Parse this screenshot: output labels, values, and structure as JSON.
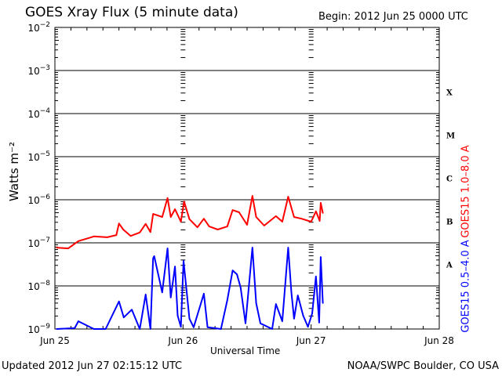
{
  "header": {
    "title": "GOES Xray Flux (5 minute data)",
    "begin": "Begin:  2012 Jun 25 0000 UTC"
  },
  "footer": {
    "updated": "Updated 2012 Jun 27 02:15:12 UTC",
    "credit": "NOAA/SWPC Boulder, CO USA"
  },
  "chart_data": {
    "type": "line",
    "title": "GOES Xray Flux (5 minute data)",
    "xlabel": "Universal Time",
    "ylabel": "Watts m⁻²",
    "x_unit": "hours since 2012 Jun 25 0000 UTC",
    "xlim": [
      0,
      72
    ],
    "ylim_log10": [
      -9,
      -2
    ],
    "yscale": "log",
    "x_ticks": [
      {
        "h": 0,
        "label": "Jun 25"
      },
      {
        "h": 24,
        "label": "Jun 26"
      },
      {
        "h": 48,
        "label": "Jun 27"
      },
      {
        "h": 72,
        "label": "Jun 28"
      }
    ],
    "y_ticks": [
      {
        "exp": -2,
        "base": "10",
        "sup": "−2"
      },
      {
        "exp": -3,
        "base": "10",
        "sup": "−3"
      },
      {
        "exp": -4,
        "base": "10",
        "sup": "−4"
      },
      {
        "exp": -5,
        "base": "10",
        "sup": "−5"
      },
      {
        "exp": -6,
        "base": "10",
        "sup": "−6"
      },
      {
        "exp": -7,
        "base": "10",
        "sup": "−7"
      },
      {
        "exp": -8,
        "base": "10",
        "sup": "−8"
      },
      {
        "exp": -9,
        "base": "10",
        "sup": "−9"
      }
    ],
    "flare_classes": [
      {
        "label": "X",
        "exp": -3.5
      },
      {
        "label": "M",
        "exp": -4.5
      },
      {
        "label": "C",
        "exp": -5.5
      },
      {
        "label": "B",
        "exp": -6.5
      },
      {
        "label": "A",
        "exp": -7.5
      }
    ],
    "grid": true,
    "series": [
      {
        "name": "GOES15 1.0–8.0 A",
        "color": "#ff0000",
        "log10_flux": [
          [
            0.3,
            -7.11
          ],
          [
            2.5,
            -7.13
          ],
          [
            4.4,
            -6.96
          ],
          [
            6.3,
            -6.89
          ],
          [
            7.3,
            -6.85
          ],
          [
            9.8,
            -6.87
          ],
          [
            11.5,
            -6.82
          ],
          [
            12.0,
            -6.55
          ],
          [
            12.8,
            -6.69
          ],
          [
            14.2,
            -6.84
          ],
          [
            15.9,
            -6.76
          ],
          [
            17.0,
            -6.56
          ],
          [
            17.9,
            -6.75
          ],
          [
            18.4,
            -6.33
          ],
          [
            20.1,
            -6.4
          ],
          [
            21.1,
            -5.96
          ],
          [
            21.7,
            -6.4
          ],
          [
            22.5,
            -6.22
          ],
          [
            23.6,
            -6.51
          ],
          [
            24.2,
            -6.04
          ],
          [
            25.2,
            -6.45
          ],
          [
            26.7,
            -6.64
          ],
          [
            27.9,
            -6.44
          ],
          [
            28.9,
            -6.62
          ],
          [
            30.5,
            -6.69
          ],
          [
            32.3,
            -6.62
          ],
          [
            33.3,
            -6.24
          ],
          [
            34.5,
            -6.29
          ],
          [
            36.0,
            -6.58
          ],
          [
            37.0,
            -5.91
          ],
          [
            37.7,
            -6.4
          ],
          [
            39.2,
            -6.6
          ],
          [
            41.4,
            -6.38
          ],
          [
            42.6,
            -6.51
          ],
          [
            43.7,
            -5.93
          ],
          [
            44.8,
            -6.4
          ],
          [
            46.2,
            -6.44
          ],
          [
            48.0,
            -6.51
          ],
          [
            48.9,
            -6.27
          ],
          [
            49.6,
            -6.49
          ],
          [
            49.8,
            -6.07
          ],
          [
            50.2,
            -6.31
          ]
        ]
      },
      {
        "name": "GOES15 0.5–4.0 A",
        "color": "#0000ff",
        "log10_flux": [
          [
            0.3,
            -9.0
          ],
          [
            3.7,
            -8.98
          ],
          [
            4.4,
            -8.82
          ],
          [
            7.3,
            -9.0
          ],
          [
            9.5,
            -9.0
          ],
          [
            12.0,
            -8.36
          ],
          [
            12.9,
            -8.73
          ],
          [
            14.4,
            -8.55
          ],
          [
            15.9,
            -9.0
          ],
          [
            17.0,
            -8.2
          ],
          [
            17.9,
            -9.0
          ],
          [
            18.4,
            -7.36
          ],
          [
            18.6,
            -7.31
          ],
          [
            20.1,
            -8.15
          ],
          [
            21.1,
            -7.13
          ],
          [
            21.7,
            -8.27
          ],
          [
            22.5,
            -7.55
          ],
          [
            23.0,
            -8.69
          ],
          [
            23.6,
            -8.95
          ],
          [
            24.1,
            -7.42
          ],
          [
            24.7,
            -8.15
          ],
          [
            25.2,
            -8.76
          ],
          [
            26.0,
            -8.96
          ],
          [
            27.9,
            -8.18
          ],
          [
            28.6,
            -8.96
          ],
          [
            31.1,
            -9.0
          ],
          [
            32.3,
            -8.33
          ],
          [
            33.3,
            -7.64
          ],
          [
            34.1,
            -7.73
          ],
          [
            34.8,
            -8.04
          ],
          [
            35.7,
            -8.87
          ],
          [
            37.0,
            -7.11
          ],
          [
            37.7,
            -8.4
          ],
          [
            38.5,
            -8.87
          ],
          [
            40.7,
            -9.0
          ],
          [
            41.4,
            -8.42
          ],
          [
            42.6,
            -8.82
          ],
          [
            43.7,
            -7.11
          ],
          [
            44.3,
            -8.15
          ],
          [
            44.8,
            -8.76
          ],
          [
            45.5,
            -8.22
          ],
          [
            46.5,
            -8.69
          ],
          [
            47.4,
            -8.95
          ],
          [
            48.2,
            -8.64
          ],
          [
            48.9,
            -7.78
          ],
          [
            49.5,
            -8.85
          ],
          [
            49.8,
            -7.33
          ],
          [
            50.2,
            -8.4
          ]
        ]
      }
    ]
  }
}
